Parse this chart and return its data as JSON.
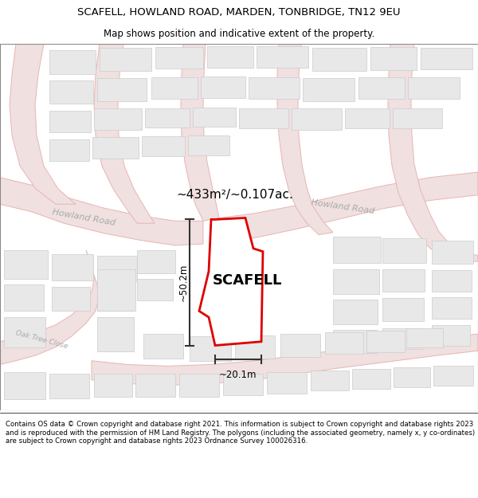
{
  "title": "SCAFELL, HOWLAND ROAD, MARDEN, TONBRIDGE, TN12 9EU",
  "subtitle": "Map shows position and indicative extent of the property.",
  "footer": "Contains OS data © Crown copyright and database right 2021. This information is subject to Crown copyright and database rights 2023 and is reproduced with the permission of HM Land Registry. The polygons (including the associated geometry, namely x, y co-ordinates) are subject to Crown copyright and database rights 2023 Ordnance Survey 100026316.",
  "map_bg": "#ffffff",
  "road_line_color": "#e8b4b4",
  "road_fill_color": "#f0e0e0",
  "road_label_color": "#aaaaaa",
  "highlight_color": "#dd0000",
  "highlight_fill": "#ffffff",
  "building_fill": "#e8e8e8",
  "building_stroke": "#cccccc",
  "area_label": "~433m²/~0.107ac.",
  "property_label": "SCAFELL",
  "dim_width": "~20.1m",
  "dim_height": "~50.2m",
  "title_fontsize": 9.5,
  "subtitle_fontsize": 8.5,
  "footer_fontsize": 6.2,
  "label_fontsize": 13,
  "area_fontsize": 11,
  "road_label_fontsize": 8
}
